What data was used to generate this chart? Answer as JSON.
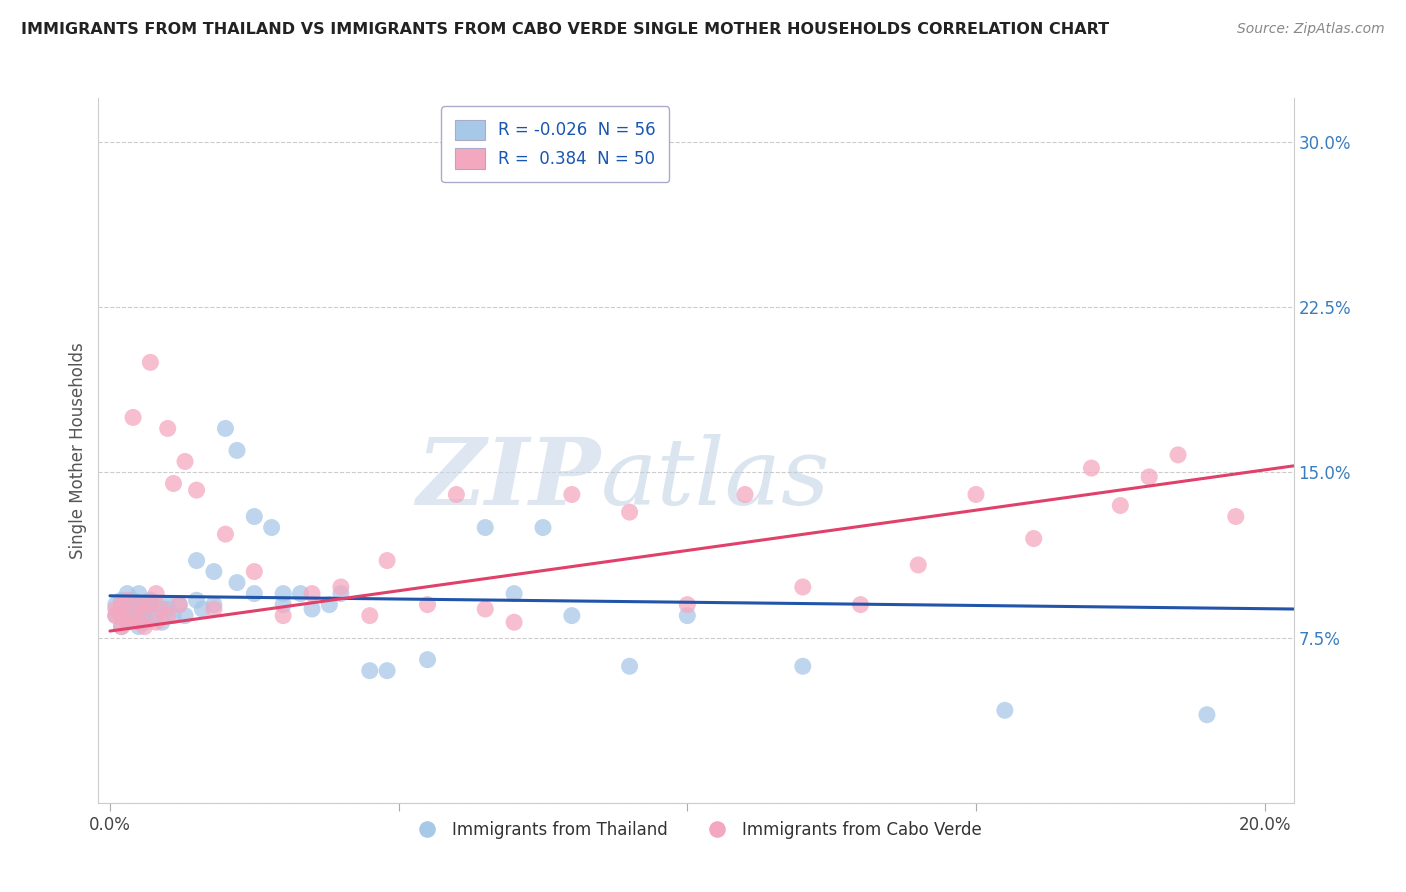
{
  "title": "IMMIGRANTS FROM THAILAND VS IMMIGRANTS FROM CABO VERDE SINGLE MOTHER HOUSEHOLDS CORRELATION CHART",
  "source": "Source: ZipAtlas.com",
  "ylabel": "Single Mother Households",
  "x_ticks": [
    0.0,
    0.05,
    0.1,
    0.15,
    0.2
  ],
  "x_tick_labels": [
    "0.0%",
    "",
    "",
    "",
    "20.0%"
  ],
  "y_ticks": [
    0.0,
    0.075,
    0.15,
    0.225,
    0.3
  ],
  "y_tick_labels_right": [
    "",
    "7.5%",
    "15.0%",
    "22.5%",
    "30.0%"
  ],
  "xlim": [
    -0.002,
    0.205
  ],
  "ylim": [
    0.0,
    0.32
  ],
  "blue_color": "#a8c8e8",
  "pink_color": "#f4a8c0",
  "blue_line_color": "#2255aa",
  "pink_line_color": "#e0406a",
  "legend_R_blue": "-0.026",
  "legend_N_blue": "56",
  "legend_R_pink": "0.384",
  "legend_N_pink": "50",
  "legend_label_blue": "Immigrants from Thailand",
  "legend_label_pink": "Immigrants from Cabo Verde",
  "watermark_zip": "ZIP",
  "watermark_atlas": "atlas",
  "blue_scatter_x": [
    0.001,
    0.001,
    0.002,
    0.002,
    0.002,
    0.003,
    0.003,
    0.003,
    0.004,
    0.004,
    0.004,
    0.005,
    0.005,
    0.005,
    0.006,
    0.006,
    0.006,
    0.007,
    0.007,
    0.008,
    0.008,
    0.009,
    0.01,
    0.01,
    0.011,
    0.012,
    0.013,
    0.015,
    0.016,
    0.018,
    0.02,
    0.022,
    0.025,
    0.028,
    0.03,
    0.033,
    0.038,
    0.04,
    0.045,
    0.048,
    0.055,
    0.065,
    0.07,
    0.075,
    0.08,
    0.09,
    0.1,
    0.12,
    0.155,
    0.19,
    0.015,
    0.018,
    0.022,
    0.025,
    0.03,
    0.035
  ],
  "blue_scatter_y": [
    0.09,
    0.085,
    0.092,
    0.088,
    0.08,
    0.095,
    0.088,
    0.082,
    0.09,
    0.085,
    0.092,
    0.088,
    0.08,
    0.095,
    0.085,
    0.09,
    0.082,
    0.088,
    0.092,
    0.085,
    0.09,
    0.082,
    0.088,
    0.09,
    0.085,
    0.09,
    0.085,
    0.092,
    0.088,
    0.09,
    0.17,
    0.16,
    0.13,
    0.125,
    0.095,
    0.095,
    0.09,
    0.095,
    0.06,
    0.06,
    0.065,
    0.125,
    0.095,
    0.125,
    0.085,
    0.062,
    0.085,
    0.062,
    0.042,
    0.04,
    0.11,
    0.105,
    0.1,
    0.095,
    0.09,
    0.088
  ],
  "pink_scatter_x": [
    0.001,
    0.001,
    0.002,
    0.002,
    0.002,
    0.003,
    0.003,
    0.004,
    0.004,
    0.005,
    0.005,
    0.006,
    0.006,
    0.007,
    0.007,
    0.008,
    0.008,
    0.009,
    0.01,
    0.01,
    0.011,
    0.012,
    0.013,
    0.015,
    0.018,
    0.02,
    0.025,
    0.03,
    0.035,
    0.04,
    0.045,
    0.048,
    0.055,
    0.06,
    0.065,
    0.07,
    0.08,
    0.09,
    0.1,
    0.11,
    0.12,
    0.13,
    0.14,
    0.15,
    0.16,
    0.17,
    0.175,
    0.18,
    0.185,
    0.195
  ],
  "pink_scatter_y": [
    0.085,
    0.088,
    0.09,
    0.08,
    0.085,
    0.092,
    0.082,
    0.175,
    0.085,
    0.09,
    0.082,
    0.088,
    0.08,
    0.2,
    0.09,
    0.095,
    0.082,
    0.088,
    0.17,
    0.085,
    0.145,
    0.09,
    0.155,
    0.142,
    0.088,
    0.122,
    0.105,
    0.085,
    0.095,
    0.098,
    0.085,
    0.11,
    0.09,
    0.14,
    0.088,
    0.082,
    0.14,
    0.132,
    0.09,
    0.14,
    0.098,
    0.09,
    0.108,
    0.14,
    0.12,
    0.152,
    0.135,
    0.148,
    0.158,
    0.13
  ]
}
